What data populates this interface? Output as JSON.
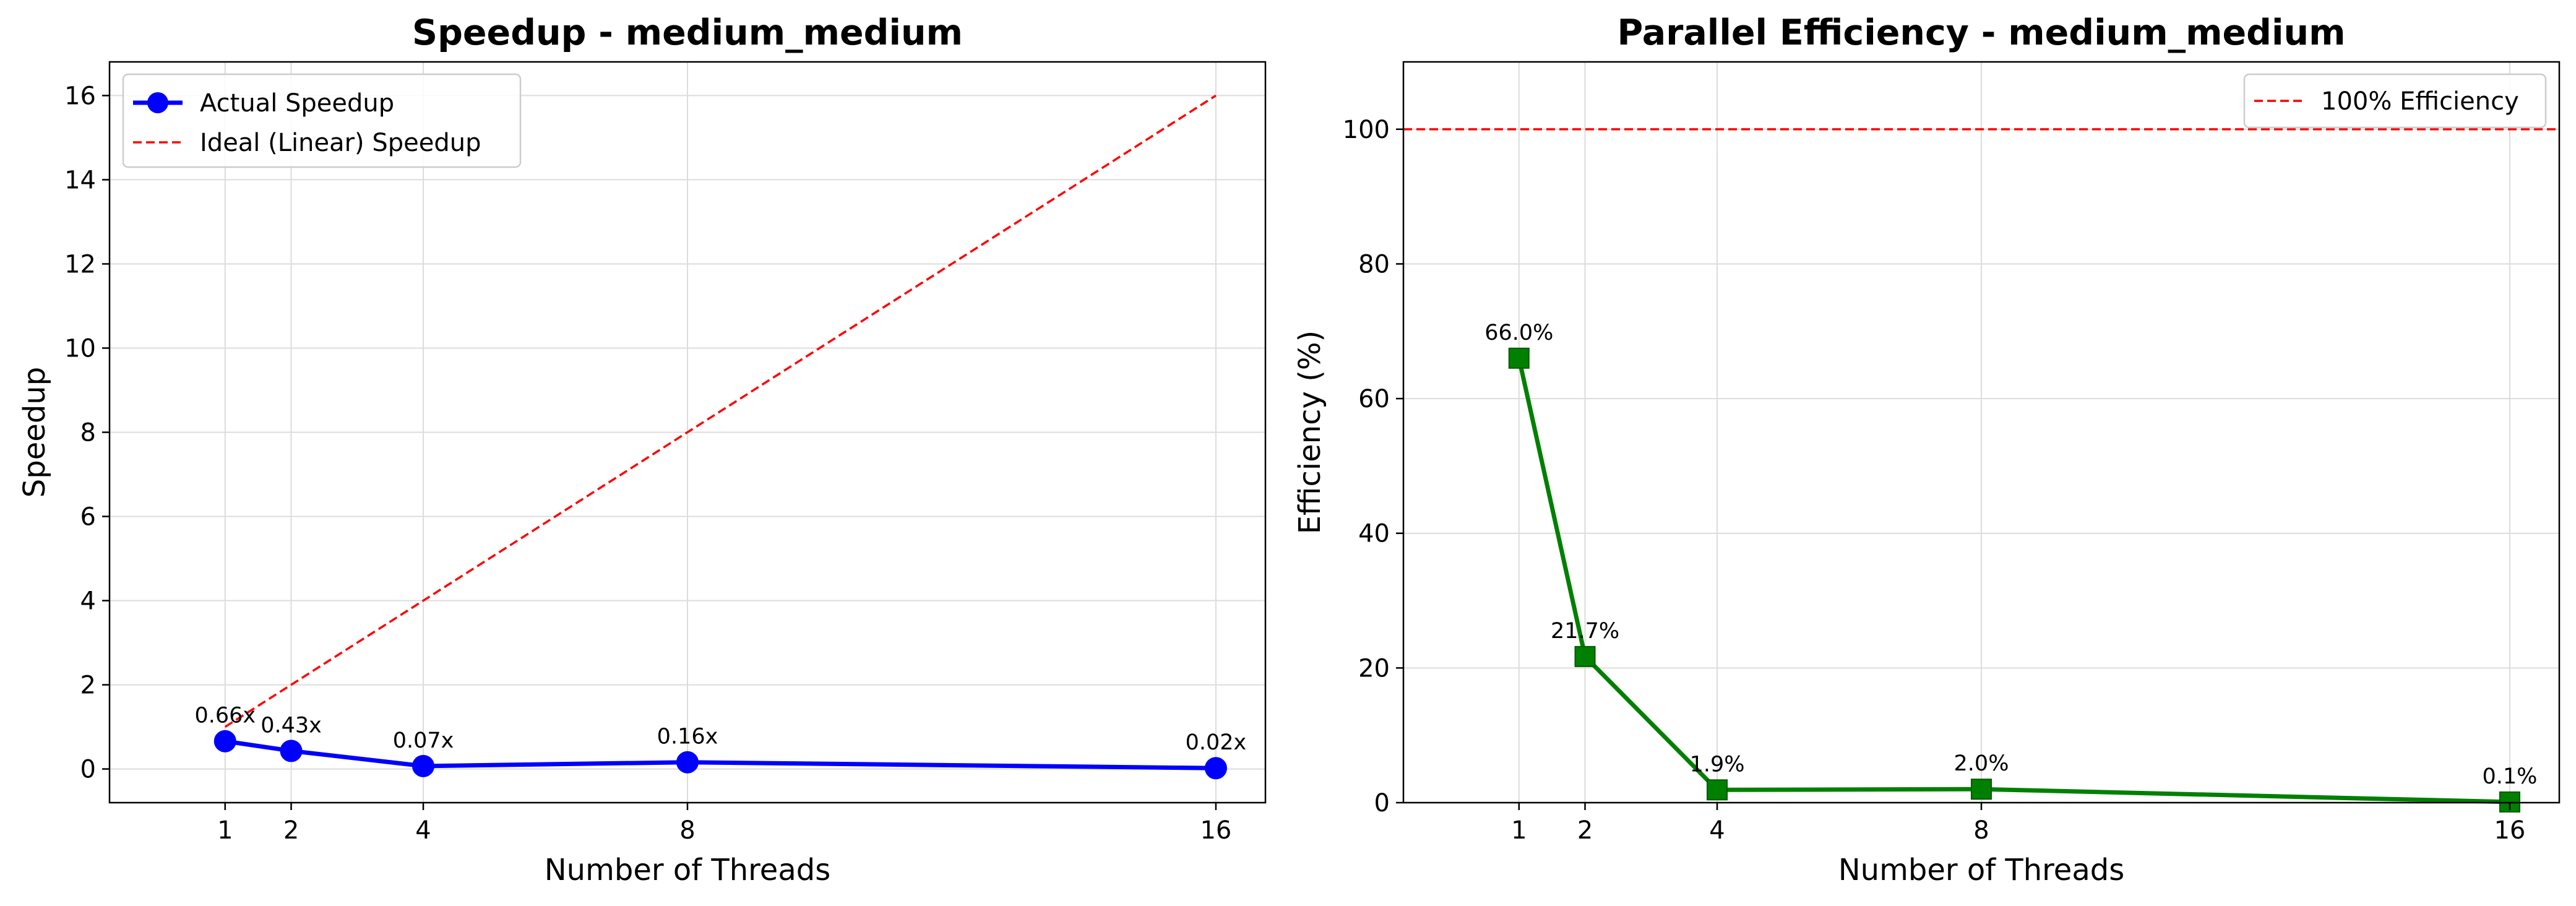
{
  "chart_data": [
    {
      "type": "line",
      "title": "Speedup - medium_medium",
      "xlabel": "Number of Threads",
      "ylabel": "Speedup",
      "x": [
        1,
        2,
        4,
        8,
        16
      ],
      "xlim": [
        -0.75,
        16.75
      ],
      "ylim": [
        -0.8,
        16.8
      ],
      "xticks": [
        "1",
        "2",
        "4",
        "8",
        "16"
      ],
      "yticks": [
        "0",
        "2",
        "4",
        "6",
        "8",
        "10",
        "12",
        "14",
        "16"
      ],
      "grid": true,
      "legend_position": "top-left",
      "series": [
        {
          "name": "Actual Speedup",
          "values": [
            0.66,
            0.43,
            0.07,
            0.16,
            0.02
          ],
          "labels": [
            "0.66x",
            "0.43x",
            "0.07x",
            "0.16x",
            "0.02x"
          ],
          "color": "#0000ff",
          "marker": "circle",
          "style": "solid"
        },
        {
          "name": "Ideal (Linear) Speedup",
          "values": [
            1,
            2,
            4,
            8,
            16
          ],
          "color": "#ff0000",
          "marker": "none",
          "style": "dashed"
        }
      ]
    },
    {
      "type": "line",
      "title": "Parallel Efficiency - medium_medium",
      "xlabel": "Number of Threads",
      "ylabel": "Efficiency (%)",
      "x": [
        1,
        2,
        4,
        8,
        16
      ],
      "xlim": [
        -0.75,
        16.75
      ],
      "ylim": [
        0,
        110
      ],
      "xticks": [
        "1",
        "2",
        "4",
        "8",
        "16"
      ],
      "yticks": [
        "0",
        "20",
        "40",
        "60",
        "80",
        "100"
      ],
      "grid": true,
      "legend_position": "top-right",
      "series": [
        {
          "name": "",
          "values": [
            66.0,
            21.7,
            1.9,
            2.0,
            0.1
          ],
          "labels": [
            "66.0%",
            "21.7%",
            "1.9%",
            "2.0%",
            "0.1%"
          ],
          "color": "#008000",
          "marker": "square",
          "style": "solid"
        }
      ],
      "reference_lines": [
        {
          "name": "100% Efficiency",
          "y": 100,
          "color": "#ff0000",
          "style": "dashed"
        }
      ]
    }
  ]
}
